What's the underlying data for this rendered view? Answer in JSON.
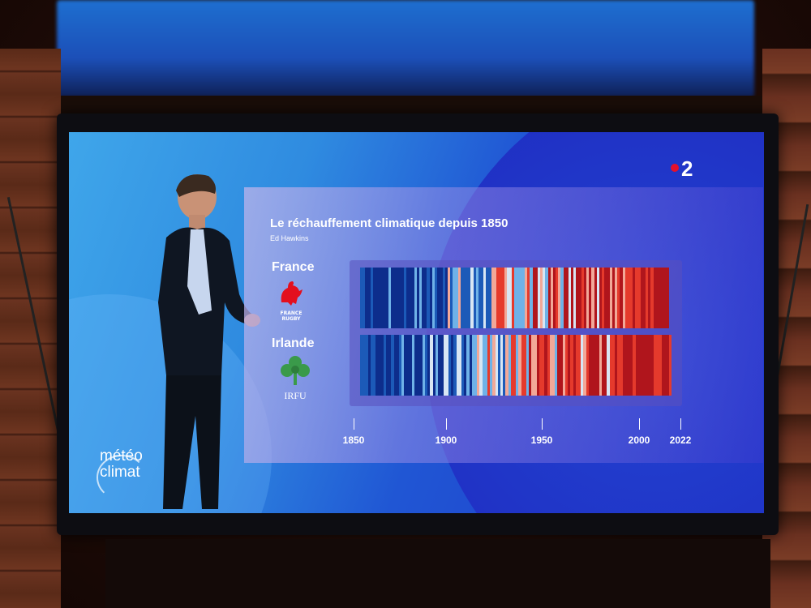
{
  "channel_logo": {
    "text": "2",
    "dot_color": "#e6102a"
  },
  "program_logo": {
    "line1": "météo",
    "line2": "climat"
  },
  "panel": {
    "title": "Le réchauffement climatique depuis 1850",
    "source": "Ed Hawkins",
    "countries": [
      {
        "name": "France",
        "logo_text": "FRANCE RUGBY",
        "logo_icon": "rooster-icon"
      },
      {
        "name": "Irlande",
        "logo_text": "IRFU",
        "logo_icon": "shamrock-icon"
      }
    ],
    "axis": {
      "ticks": [
        "1850",
        "1900",
        "1950",
        "2000",
        "2022"
      ]
    }
  },
  "colors": {
    "warm_dark": "#b0151c",
    "warm": "#e53a2c",
    "cool": "#1c5ab8",
    "cool_dark": "#0d2d8c",
    "neutral": "#d8e6f4"
  }
}
